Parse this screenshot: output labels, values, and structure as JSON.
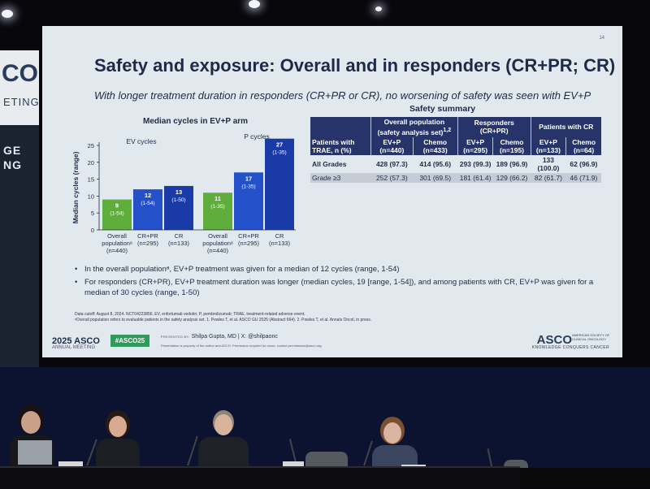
{
  "slide": {
    "slide_number": "14",
    "title": "Safety and exposure: Overall and in responders (CR+PR; CR)",
    "subtitle": "With longer treatment duration in responders (CR+PR or CR), no worsening of safety was seen with EV+P",
    "chart_title": "Median cycles in EV+P arm",
    "table_title": "Safety summary",
    "bullets": [
      "In the overall populationᵃ, EV+P treatment was given for a median of 12 cycles (range, 1-54)",
      "For responders (CR+PR), EV+P treatment duration was longer (median cycles, 19 [range, 1-54]), and among patients with CR, EV+P was given for a median of 30 cycles (range, 1-50)"
    ],
    "footnote_1": "Data cutoff: August 8, 2024. NCT04223856. EV, enfortumab vedotin; P, pembrolizumab; TRAE, treatment-related adverse event.",
    "footnote_2": "ᵃOverall population refers to evaluable patients in the safety analysis set. 1. Powles T, et al. ASCO GU 2025 (Abstract 664). 2. Powles T, et al. Annals Oncol, in press.",
    "footer": {
      "meeting_logo": "2025 ASCO",
      "meeting_sub": "ANNUAL MEETING",
      "hashtag": "#ASCO25",
      "presented_label": "PRESENTED BY:",
      "presenter": "Shilpa Gupta, MD | X: @shilpaonc",
      "presented_note": "Presentation is property of the author and ASCO. Permission required for reuse; contact permissions@asco.org.",
      "asco_logo": "ASCO",
      "asco_sub": "AMERICAN SOCIETY OF CLINICAL ONCOLOGY",
      "asco_tagline": "KNOWLEDGE CONQUERS CANCER"
    }
  },
  "chart_data": {
    "type": "bar",
    "title": "Median cycles in EV+P arm",
    "ylabel": "Median cycles (range)",
    "ylim": [
      0,
      25
    ],
    "yticks": [
      0,
      5,
      10,
      15,
      20,
      25
    ],
    "groups": [
      {
        "name": "EV cycles",
        "categories": [
          "Overall populationᵃ (n=440)",
          "CR+PR (n=295)",
          "CR (n=133)"
        ],
        "values": [
          9,
          12,
          13
        ],
        "ranges": [
          "(1-54)",
          "(1-54)",
          "(1-50)"
        ]
      },
      {
        "name": "P cycles",
        "categories": [
          "Overall populationᵃ (n=440)",
          "CR+PR (n=295)",
          "CR (n=133)"
        ],
        "values": [
          11,
          17,
          27
        ],
        "ranges": [
          "(1-35)",
          "(1-35)",
          "(1-35)"
        ]
      }
    ],
    "category_labels": [
      {
        "line1": "Overall",
        "line2": "populationᵃ",
        "line3": "(n=440)"
      },
      {
        "line1": "CR+PR",
        "line2": "(n=295)",
        "line3": ""
      },
      {
        "line1": "CR",
        "line2": "(n=133)",
        "line3": ""
      }
    ],
    "colors": [
      "#5fae3c",
      "#2450c9",
      "#1a3aa8"
    ]
  },
  "table": {
    "header_row1": [
      "Overall population (safety analysis set)",
      "Responders (CR+PR)",
      "Patients with CR"
    ],
    "header_sup": "1,2",
    "row_label_header": "Patients with TRAE, n (%)",
    "sub_headers": [
      "EV+P (n=440)",
      "Chemo (n=433)",
      "EV+P (n=295)",
      "Chemo (n=195)",
      "EV+P (n=133)",
      "Chemo (n=64)"
    ],
    "rows": [
      {
        "label": "All Grades",
        "cells": [
          "428 (97.3)",
          "414 (95.6)",
          "293 (99.3)",
          "189 (96.9)",
          "133 (100.0)",
          "62 (96.9)"
        ]
      },
      {
        "label": "Grade ≥3",
        "cells": [
          "252 (57.3)",
          "301 (69.5)",
          "181 (61.4)",
          "129 (66.2)",
          "82 (61.7)",
          "46 (71.9)"
        ]
      }
    ]
  },
  "side_banner": {
    "big": "CO",
    "small": "ETING",
    "word1": "GE",
    "word2": "NG"
  }
}
